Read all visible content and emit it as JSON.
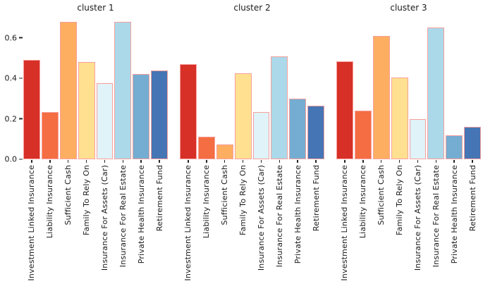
{
  "figure": {
    "description": "Three-panel bar chart comparing attitude/ownership scores across clusters",
    "background": "#ffffff"
  },
  "style": {
    "bar_colors": [
      "#d73027",
      "#f46d43",
      "#fdae61",
      "#fee090",
      "#e0f3f8",
      "#abd9e9",
      "#74add1",
      "#4575b4"
    ],
    "bar_edge_color": "#f7a09d",
    "tick_color": "#262626",
    "text_color": "#1a1a1a"
  },
  "chart_data": [
    {
      "type": "bar",
      "title": "cluster 1",
      "categories": [
        "Investment Linked Insurance",
        "Liability Insurance",
        "Sufficient Cash",
        "Family To Rely On",
        "Insurance For Assets (Car)",
        "Insurance For Real Estate",
        "Private Health Insurance",
        "Retirement Fund"
      ],
      "values": [
        0.49,
        0.235,
        0.68,
        0.48,
        0.375,
        0.68,
        0.42,
        0.44
      ],
      "xlabel": "",
      "ylabel": "",
      "yticks": [
        0.0,
        0.2,
        0.4,
        0.6
      ],
      "ytick_labels": [
        "0.0",
        "0.2",
        "0.4",
        "0.6"
      ],
      "ylim": [
        0,
        0.71
      ],
      "grid": false,
      "legend": false
    },
    {
      "type": "bar",
      "title": "cluster 2",
      "categories": [
        "Investment Linked Insurance",
        "Liability Insurance",
        "Sufficient Cash",
        "Family To Rely On",
        "Insurance For Assets (Car)",
        "Insurance For Real Estate",
        "Private Health Insurance",
        "Retirement Fund"
      ],
      "values": [
        0.47,
        0.11,
        0.075,
        0.425,
        0.235,
        0.51,
        0.3,
        0.265
      ],
      "xlabel": "",
      "ylabel": "",
      "yticks": [
        0.0,
        0.2,
        0.4,
        0.6
      ],
      "ytick_labels": [
        "0.0",
        "0.2",
        "0.4",
        "0.6"
      ],
      "ylim": [
        0,
        0.71
      ],
      "grid": false,
      "legend": false
    },
    {
      "type": "bar",
      "title": "cluster 3",
      "categories": [
        "Investment Linked Insurance",
        "Liability Insurance",
        "Sufficient Cash",
        "Family To Rely On",
        "Insurance For Assets (Car)",
        "Insurance For Real Estate",
        "Private Health Insurance",
        "Retirement Fund"
      ],
      "values": [
        0.485,
        0.24,
        0.61,
        0.405,
        0.2,
        0.65,
        0.12,
        0.16
      ],
      "xlabel": "",
      "ylabel": "",
      "yticks": [
        0.0,
        0.2,
        0.4,
        0.6
      ],
      "ytick_labels": [
        "0.0",
        "0.2",
        "0.4",
        "0.6"
      ],
      "ylim": [
        0,
        0.71
      ],
      "grid": false,
      "legend": false
    }
  ]
}
